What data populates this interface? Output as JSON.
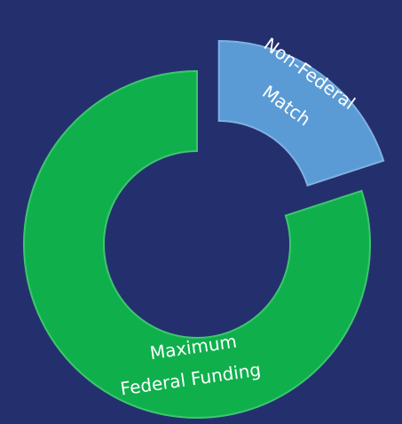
{
  "chart_data": {
    "type": "donut",
    "categories": [
      [
        "Non-Federal",
        "Match"
      ],
      [
        "Maximum",
        "Federal Funding"
      ]
    ],
    "values": [
      20,
      80
    ],
    "colors": [
      "#5b9bd5",
      "#0fb04c"
    ]
  }
}
